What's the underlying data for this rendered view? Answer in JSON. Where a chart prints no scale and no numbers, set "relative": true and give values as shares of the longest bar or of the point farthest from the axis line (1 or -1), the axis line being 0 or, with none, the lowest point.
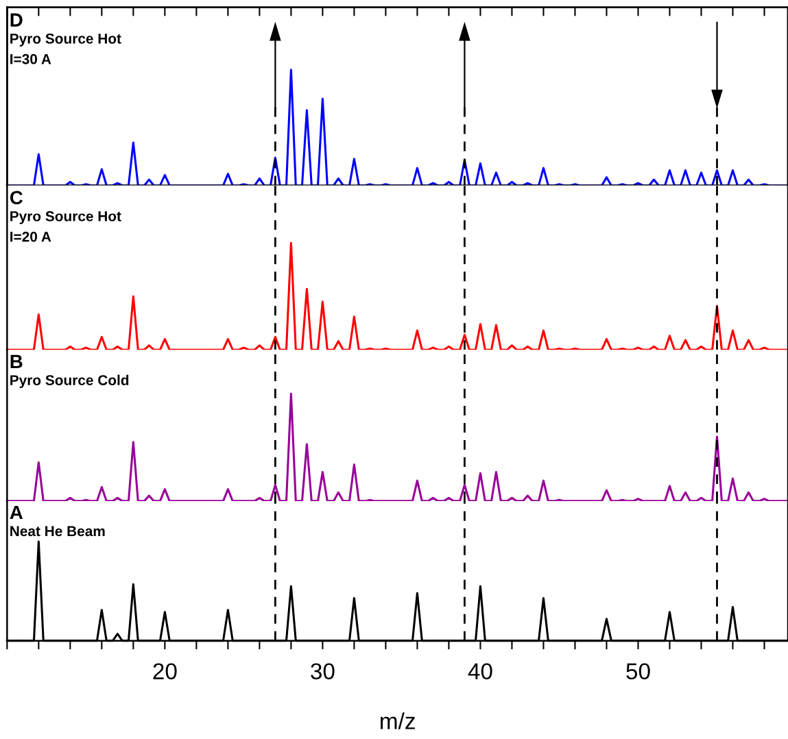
{
  "chart_data": [
    {
      "type": "line",
      "relative": true,
      "annotations": [
        "D",
        "Pyro Source Hot",
        "I=30 A"
      ],
      "xlim": [
        10,
        59.5
      ],
      "tick_labels": false,
      "grid": false,
      "legend": false,
      "line_style": "solid",
      "ref_lines": [
        {
          "axis": "x",
          "value": 27,
          "color": "#000000",
          "line_style": "dashed"
        },
        {
          "axis": "x",
          "value": 39,
          "color": "#000000",
          "line_style": "dashed"
        },
        {
          "axis": "x",
          "value": 55,
          "color": "#000000",
          "line_style": "dashed"
        }
      ],
      "series": [
        {
          "color": "#0000ff",
          "x": [
            10,
            11.7,
            12,
            12.3,
            13.7,
            14,
            14.3,
            14.7,
            15,
            15.3,
            15.7,
            16,
            16.3,
            16.7,
            17,
            17.3,
            17.7,
            18,
            18.3,
            18.7,
            19,
            19.3,
            19.7,
            20,
            20.3,
            23.7,
            24,
            24.3,
            24.7,
            25,
            25.3,
            25.7,
            26,
            26.3,
            26.7,
            27,
            27.3,
            27.7,
            28,
            28.3,
            28.7,
            29,
            29.3,
            29.7,
            30,
            30.3,
            30.7,
            31,
            31.3,
            31.7,
            32,
            32.3,
            32.7,
            33,
            33.3,
            33.7,
            34,
            34.3,
            35.7,
            36,
            36.3,
            36.7,
            37,
            37.3,
            37.7,
            38,
            38.3,
            38.7,
            39,
            39.3,
            39.7,
            40,
            40.3,
            40.7,
            41,
            41.3,
            41.7,
            42,
            42.3,
            42.7,
            43,
            43.3,
            43.7,
            44,
            44.3,
            44.7,
            45,
            45.3,
            45.7,
            46,
            46.3,
            47.7,
            48,
            48.3,
            48.7,
            49,
            49.3,
            49.7,
            50,
            50.3,
            50.7,
            51,
            51.3,
            51.7,
            52,
            52.3,
            52.7,
            53,
            53.3,
            53.7,
            54,
            54.3,
            54.7,
            55,
            55.3,
            55.7,
            56,
            56.3,
            56.7,
            57,
            57.3,
            57.7,
            58,
            58.3,
            59.5
          ],
          "values": [
            0,
            0,
            0.27,
            0,
            0,
            0.03,
            0,
            0,
            0.01,
            0,
            0,
            0.14,
            0,
            0,
            0.02,
            0,
            0,
            0.37,
            0,
            0,
            0.05,
            0,
            0,
            0.09,
            0,
            0,
            0.1,
            0,
            0,
            0.01,
            0,
            0,
            0.06,
            0,
            0,
            0.24,
            0,
            0,
            1,
            0,
            0,
            0.65,
            0,
            0,
            0.75,
            0,
            0,
            0.06,
            0,
            0,
            0.23,
            0,
            0,
            0.01,
            0,
            0,
            0.01,
            0,
            0,
            0.15,
            0,
            0,
            0.02,
            0,
            0,
            0.03,
            0,
            0,
            0.22,
            0,
            0,
            0.19,
            0,
            0,
            0.11,
            0,
            0,
            0.03,
            0,
            0,
            0.02,
            0,
            0,
            0.15,
            0,
            0,
            0.01,
            0,
            0,
            0.01,
            0,
            0,
            0.07,
            0,
            0,
            0.01,
            0,
            0,
            0.02,
            0,
            0,
            0.05,
            0,
            0,
            0.13,
            0,
            0,
            0.13,
            0,
            0,
            0.11,
            0,
            0,
            0.13,
            0,
            0,
            0.13,
            0,
            0,
            0.05,
            0,
            0,
            0.01,
            0,
            0
          ]
        }
      ]
    },
    {
      "type": "line",
      "relative": true,
      "annotations": [
        "C",
        "Pyro Source Hot",
        "I=20 A"
      ],
      "xlim": [
        10,
        59.5
      ],
      "tick_labels": false,
      "grid": false,
      "legend": false,
      "line_style": "solid",
      "ref_lines": [
        {
          "axis": "x",
          "value": 27,
          "color": "#000000",
          "line_style": "dashed"
        },
        {
          "axis": "x",
          "value": 39,
          "color": "#000000",
          "line_style": "dashed"
        },
        {
          "axis": "x",
          "value": 55,
          "color": "#000000",
          "line_style": "dashed"
        }
      ],
      "series": [
        {
          "color": "#ff0000",
          "x": [
            10,
            11.7,
            12,
            12.3,
            13.7,
            14,
            14.3,
            14.7,
            15,
            15.3,
            15.7,
            16,
            16.3,
            16.7,
            17,
            17.3,
            17.7,
            18,
            18.3,
            18.7,
            19,
            19.3,
            19.7,
            20,
            20.3,
            23.7,
            24,
            24.3,
            24.7,
            25,
            25.3,
            25.7,
            26,
            26.3,
            26.7,
            27,
            27.3,
            27.7,
            28,
            28.3,
            28.7,
            29,
            29.3,
            29.7,
            30,
            30.3,
            30.7,
            31,
            31.3,
            31.7,
            32,
            32.3,
            32.7,
            33,
            33.3,
            33.7,
            34,
            34.3,
            35.7,
            36,
            36.3,
            36.7,
            37,
            37.3,
            37.7,
            38,
            38.3,
            38.7,
            39,
            39.3,
            39.7,
            40,
            40.3,
            40.7,
            41,
            41.3,
            41.7,
            42,
            42.3,
            42.7,
            43,
            43.3,
            43.7,
            44,
            44.3,
            44.7,
            45,
            45.3,
            45.7,
            46,
            46.3,
            47.7,
            48,
            48.3,
            48.7,
            49,
            49.3,
            49.7,
            50,
            50.3,
            50.7,
            51,
            51.3,
            51.7,
            52,
            52.3,
            52.7,
            53,
            53.3,
            53.7,
            54,
            54.3,
            54.7,
            55,
            55.3,
            55.7,
            56,
            56.3,
            56.7,
            57,
            57.3,
            57.7,
            58,
            58.3,
            59.5
          ],
          "values": [
            0,
            0,
            0.33,
            0,
            0,
            0.03,
            0,
            0,
            0.02,
            0,
            0,
            0.12,
            0,
            0,
            0.03,
            0,
            0,
            0.5,
            0,
            0,
            0.04,
            0,
            0,
            0.1,
            0,
            0,
            0.1,
            0,
            0,
            0.02,
            0,
            0,
            0.04,
            0,
            0,
            0.12,
            0,
            0,
            1,
            0,
            0,
            0.57,
            0,
            0,
            0.45,
            0,
            0,
            0.08,
            0,
            0,
            0.31,
            0,
            0,
            0.01,
            0,
            0,
            0.01,
            0,
            0,
            0.18,
            0,
            0,
            0.02,
            0,
            0,
            0.03,
            0,
            0,
            0.14,
            0,
            0,
            0.24,
            0,
            0,
            0.23,
            0,
            0,
            0.04,
            0,
            0,
            0.03,
            0,
            0,
            0.18,
            0,
            0,
            0.01,
            0,
            0,
            0.01,
            0,
            0,
            0.1,
            0,
            0,
            0.01,
            0,
            0,
            0.02,
            0,
            0,
            0.03,
            0,
            0,
            0.13,
            0,
            0,
            0.09,
            0,
            0,
            0.03,
            0,
            0,
            0.41,
            0,
            0,
            0.18,
            0,
            0,
            0.09,
            0,
            0,
            0.02,
            0,
            0
          ]
        }
      ]
    },
    {
      "type": "line",
      "relative": true,
      "annotations": [
        "B",
        "Pyro Source Cold"
      ],
      "xlim": [
        10,
        59.5
      ],
      "tick_labels": false,
      "grid": false,
      "legend": false,
      "line_style": "solid",
      "ref_lines": [
        {
          "axis": "x",
          "value": 27,
          "color": "#000000",
          "line_style": "dashed"
        },
        {
          "axis": "x",
          "value": 39,
          "color": "#000000",
          "line_style": "dashed"
        },
        {
          "axis": "x",
          "value": 55,
          "color": "#000000",
          "line_style": "dashed"
        }
      ],
      "series": [
        {
          "color": "#990099",
          "x": [
            10,
            11.7,
            12,
            12.3,
            13.7,
            14,
            14.3,
            14.7,
            15,
            15.3,
            15.7,
            16,
            16.3,
            16.7,
            17,
            17.3,
            17.7,
            18,
            18.3,
            18.7,
            19,
            19.3,
            19.7,
            20,
            20.3,
            23.7,
            24,
            24.3,
            25.7,
            26,
            26.3,
            26.7,
            27,
            27.3,
            27.7,
            28,
            28.3,
            28.7,
            29,
            29.3,
            29.7,
            30,
            30.3,
            30.7,
            31,
            31.3,
            31.7,
            32,
            32.3,
            32.7,
            33,
            33.3,
            35.7,
            36,
            36.3,
            36.7,
            37,
            37.3,
            37.7,
            38,
            38.3,
            38.7,
            39,
            39.3,
            39.7,
            40,
            40.3,
            40.7,
            41,
            41.3,
            41.7,
            42,
            42.3,
            42.7,
            43,
            43.3,
            43.7,
            44,
            44.3,
            44.7,
            45,
            45.3,
            47.7,
            48,
            48.3,
            48.7,
            49,
            49.3,
            49.7,
            50,
            50.3,
            51.7,
            52,
            52.3,
            52.7,
            53,
            53.3,
            53.7,
            54,
            54.3,
            54.7,
            55,
            55.3,
            55.7,
            56,
            56.3,
            56.7,
            57,
            57.3,
            57.7,
            58,
            58.3,
            59.5
          ],
          "values": [
            0,
            0,
            0.36,
            0,
            0,
            0.03,
            0,
            0,
            0.01,
            0,
            0,
            0.13,
            0,
            0,
            0.03,
            0,
            0,
            0.55,
            0,
            0,
            0.05,
            0,
            0,
            0.11,
            0,
            0,
            0.11,
            0,
            0,
            0.03,
            0,
            0,
            0.15,
            0,
            0,
            1,
            0,
            0,
            0.53,
            0,
            0,
            0.27,
            0,
            0,
            0.08,
            0,
            0,
            0.34,
            0,
            0,
            0.01,
            0,
            0,
            0.19,
            0,
            0,
            0.03,
            0,
            0,
            0.03,
            0,
            0,
            0.15,
            0,
            0,
            0.26,
            0,
            0,
            0.27,
            0,
            0,
            0.03,
            0,
            0,
            0.05,
            0,
            0,
            0.19,
            0,
            0,
            0.01,
            0,
            0,
            0.1,
            0,
            0,
            0.01,
            0,
            0,
            0.02,
            0,
            0,
            0.14,
            0,
            0,
            0.08,
            0,
            0,
            0.03,
            0,
            0,
            0.6,
            0,
            0,
            0.21,
            0,
            0,
            0.08,
            0,
            0,
            0.02,
            0,
            0
          ]
        }
      ]
    },
    {
      "type": "line",
      "relative": true,
      "annotations": [
        "A",
        "Neat He Beam"
      ],
      "xlabel": "m/z",
      "xlim": [
        10,
        59.5
      ],
      "xticks": [
        {
          "value": 10,
          "label": null
        },
        {
          "value": 12,
          "label": null
        },
        {
          "value": 14,
          "label": null
        },
        {
          "value": 16,
          "label": null
        },
        {
          "value": 18,
          "label": null
        },
        20,
        {
          "value": 22,
          "label": null
        },
        {
          "value": 24,
          "label": null
        },
        {
          "value": 26,
          "label": null
        },
        {
          "value": 28,
          "label": null
        },
        30,
        {
          "value": 32,
          "label": null
        },
        {
          "value": 34,
          "label": null
        },
        {
          "value": 36,
          "label": null
        },
        {
          "value": 38,
          "label": null
        },
        40,
        {
          "value": 42,
          "label": null
        },
        {
          "value": 44,
          "label": null
        },
        {
          "value": 46,
          "label": null
        },
        {
          "value": 48,
          "label": null
        },
        50,
        {
          "value": 52,
          "label": null
        },
        {
          "value": 54,
          "label": null
        },
        {
          "value": 56,
          "label": null
        },
        {
          "value": 58,
          "label": null
        }
      ],
      "tick_labels": "x",
      "grid": false,
      "legend": false,
      "line_style": "solid",
      "ref_lines": [
        {
          "axis": "x",
          "value": 27,
          "color": "#000000",
          "line_style": "dashed"
        },
        {
          "axis": "x",
          "value": 39,
          "color": "#000000",
          "line_style": "dashed"
        },
        {
          "axis": "x",
          "value": 55,
          "color": "#000000",
          "line_style": "dashed"
        }
      ],
      "series": [
        {
          "color": "#000000",
          "x": [
            10,
            11.7,
            12,
            12.3,
            15.7,
            16,
            16.3,
            16.7,
            17,
            17.3,
            17.7,
            18,
            18.3,
            19.7,
            20,
            20.3,
            23.7,
            24,
            24.3,
            27.7,
            28,
            28.3,
            31.7,
            32,
            32.3,
            35.7,
            36,
            36.3,
            39.7,
            40,
            40.3,
            43.7,
            44,
            44.3,
            47.7,
            48,
            48.3,
            51.7,
            52,
            52.3,
            55.7,
            56,
            56.3,
            59.5
          ],
          "values": [
            0,
            0,
            1,
            0,
            0,
            0.31,
            0,
            0,
            0.07,
            0,
            0,
            0.57,
            0,
            0,
            0.29,
            0,
            0,
            0.31,
            0,
            0,
            0.55,
            0,
            0,
            0.43,
            0,
            0,
            0.48,
            0,
            0,
            0.55,
            0,
            0,
            0.43,
            0,
            0,
            0.22,
            0,
            0,
            0.29,
            0,
            0,
            0.34,
            0,
            0
          ]
        }
      ]
    }
  ]
}
